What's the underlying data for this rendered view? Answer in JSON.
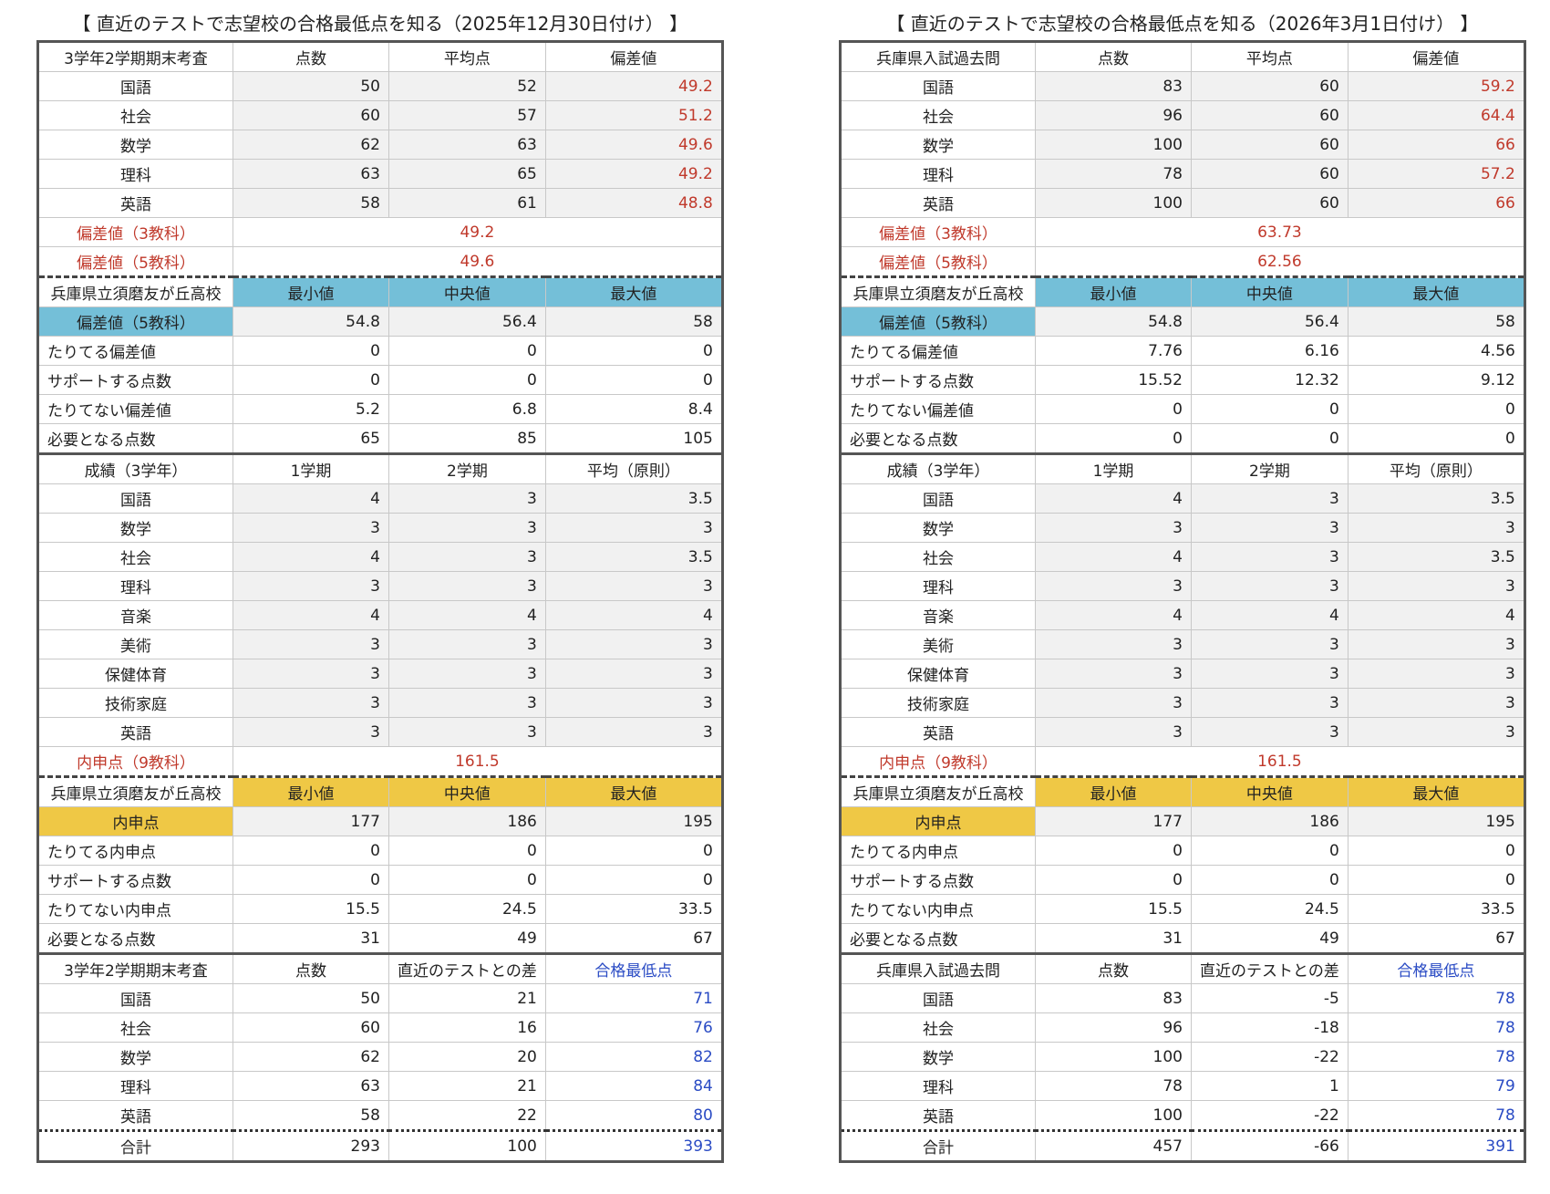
{
  "panels": [
    {
      "title": "【 直近のテストで志望校の合格最低点を知る（2025年12月30日付け） 】",
      "sections": [
        {
          "header": [
            "3学年2学期期末考査",
            "点数",
            "平均点",
            "偏差値"
          ],
          "rows": [
            [
              "国語",
              50,
              52,
              49.2
            ],
            [
              "社会",
              60,
              57,
              51.2
            ],
            [
              "数学",
              62,
              63,
              49.6
            ],
            [
              "理科",
              63,
              65,
              49.2
            ],
            [
              "英語",
              58,
              61,
              48.8
            ]
          ],
          "summary": [
            [
              "偏差値（3教科）",
              49.2
            ],
            [
              "偏差値（5教科）",
              49.6
            ]
          ]
        },
        {
          "header": [
            "兵庫県立須磨友が丘高校",
            "最小値",
            "中央値",
            "最大値"
          ],
          "rows": [
            [
              "偏差値（5教科）",
              54.8,
              56.4,
              58
            ],
            [
              "たりてる偏差値",
              0,
              0,
              0
            ],
            [
              "サポートする点数",
              0,
              0,
              0
            ],
            [
              "たりてない偏差値",
              5.2,
              6.8,
              8.4
            ],
            [
              "必要となる点数",
              65,
              85,
              105
            ]
          ]
        },
        {
          "header": [
            "成績（3学年）",
            "1学期",
            "2学期",
            "平均（原則）"
          ],
          "rows": [
            [
              "国語",
              4,
              3,
              3.5
            ],
            [
              "数学",
              3,
              3,
              3
            ],
            [
              "社会",
              4,
              3,
              3.5
            ],
            [
              "理科",
              3,
              3,
              3
            ],
            [
              "音楽",
              4,
              4,
              4
            ],
            [
              "美術",
              3,
              3,
              3
            ],
            [
              "保健体育",
              3,
              3,
              3
            ],
            [
              "技術家庭",
              3,
              3,
              3
            ],
            [
              "英語",
              3,
              3,
              3
            ]
          ],
          "summary": [
            [
              "内申点（9教科）",
              161.5
            ]
          ]
        },
        {
          "header": [
            "兵庫県立須磨友が丘高校",
            "最小値",
            "中央値",
            "最大値"
          ],
          "rows": [
            [
              "内申点",
              177,
              186,
              195
            ],
            [
              "たりてる内申点",
              0,
              0,
              0
            ],
            [
              "サポートする点数",
              0,
              0,
              0
            ],
            [
              "たりてない内申点",
              15.5,
              24.5,
              33.5
            ],
            [
              "必要となる点数",
              31,
              49,
              67
            ]
          ]
        },
        {
          "header": [
            "3学年2学期期末考査",
            "点数",
            "直近のテストとの差",
            "合格最低点"
          ],
          "rows": [
            [
              "国語",
              50,
              21,
              71
            ],
            [
              "社会",
              60,
              16,
              76
            ],
            [
              "数学",
              62,
              20,
              82
            ],
            [
              "理科",
              63,
              21,
              84
            ],
            [
              "英語",
              58,
              22,
              80
            ]
          ],
          "total": [
            "合計",
            293,
            100,
            393
          ]
        }
      ]
    },
    {
      "title": "【 直近のテストで志望校の合格最低点を知る（2026年3月1日付け） 】",
      "sections": [
        {
          "header": [
            "兵庫県入試過去問",
            "点数",
            "平均点",
            "偏差値"
          ],
          "rows": [
            [
              "国語",
              83,
              60,
              59.2
            ],
            [
              "社会",
              96,
              60,
              64.4
            ],
            [
              "数学",
              100,
              60,
              66
            ],
            [
              "理科",
              78,
              60,
              57.2
            ],
            [
              "英語",
              100,
              60,
              66
            ]
          ],
          "summary": [
            [
              "偏差値（3教科）",
              63.73
            ],
            [
              "偏差値（5教科）",
              62.56
            ]
          ]
        },
        {
          "header": [
            "兵庫県立須磨友が丘高校",
            "最小値",
            "中央値",
            "最大値"
          ],
          "rows": [
            [
              "偏差値（5教科）",
              54.8,
              56.4,
              58
            ],
            [
              "たりてる偏差値",
              7.76,
              6.16,
              4.56
            ],
            [
              "サポートする点数",
              15.52,
              12.32,
              9.12
            ],
            [
              "たりてない偏差値",
              0,
              0,
              0
            ],
            [
              "必要となる点数",
              0,
              0,
              0
            ]
          ]
        },
        {
          "header": [
            "成績（3学年）",
            "1学期",
            "2学期",
            "平均（原則）"
          ],
          "rows": [
            [
              "国語",
              4,
              3,
              3.5
            ],
            [
              "数学",
              3,
              3,
              3
            ],
            [
              "社会",
              4,
              3,
              3.5
            ],
            [
              "理科",
              3,
              3,
              3
            ],
            [
              "音楽",
              4,
              4,
              4
            ],
            [
              "美術",
              3,
              3,
              3
            ],
            [
              "保健体育",
              3,
              3,
              3
            ],
            [
              "技術家庭",
              3,
              3,
              3
            ],
            [
              "英語",
              3,
              3,
              3
            ]
          ],
          "summary": [
            [
              "内申点（9教科）",
              161.5
            ]
          ]
        },
        {
          "header": [
            "兵庫県立須磨友が丘高校",
            "最小値",
            "中央値",
            "最大値"
          ],
          "rows": [
            [
              "内申点",
              177,
              186,
              195
            ],
            [
              "たりてる内申点",
              0,
              0,
              0
            ],
            [
              "サポートする点数",
              0,
              0,
              0
            ],
            [
              "たりてない内申点",
              15.5,
              24.5,
              33.5
            ],
            [
              "必要となる点数",
              31,
              49,
              67
            ]
          ]
        },
        {
          "header": [
            "兵庫県入試過去問",
            "点数",
            "直近のテストとの差",
            "合格最低点"
          ],
          "rows": [
            [
              "国語",
              83,
              -5,
              78
            ],
            [
              "社会",
              96,
              -18,
              78
            ],
            [
              "数学",
              100,
              -22,
              78
            ],
            [
              "理科",
              78,
              1,
              79
            ],
            [
              "英語",
              100,
              -22,
              78
            ]
          ],
          "total": [
            "合計",
            457,
            -66,
            391
          ]
        }
      ]
    }
  ]
}
